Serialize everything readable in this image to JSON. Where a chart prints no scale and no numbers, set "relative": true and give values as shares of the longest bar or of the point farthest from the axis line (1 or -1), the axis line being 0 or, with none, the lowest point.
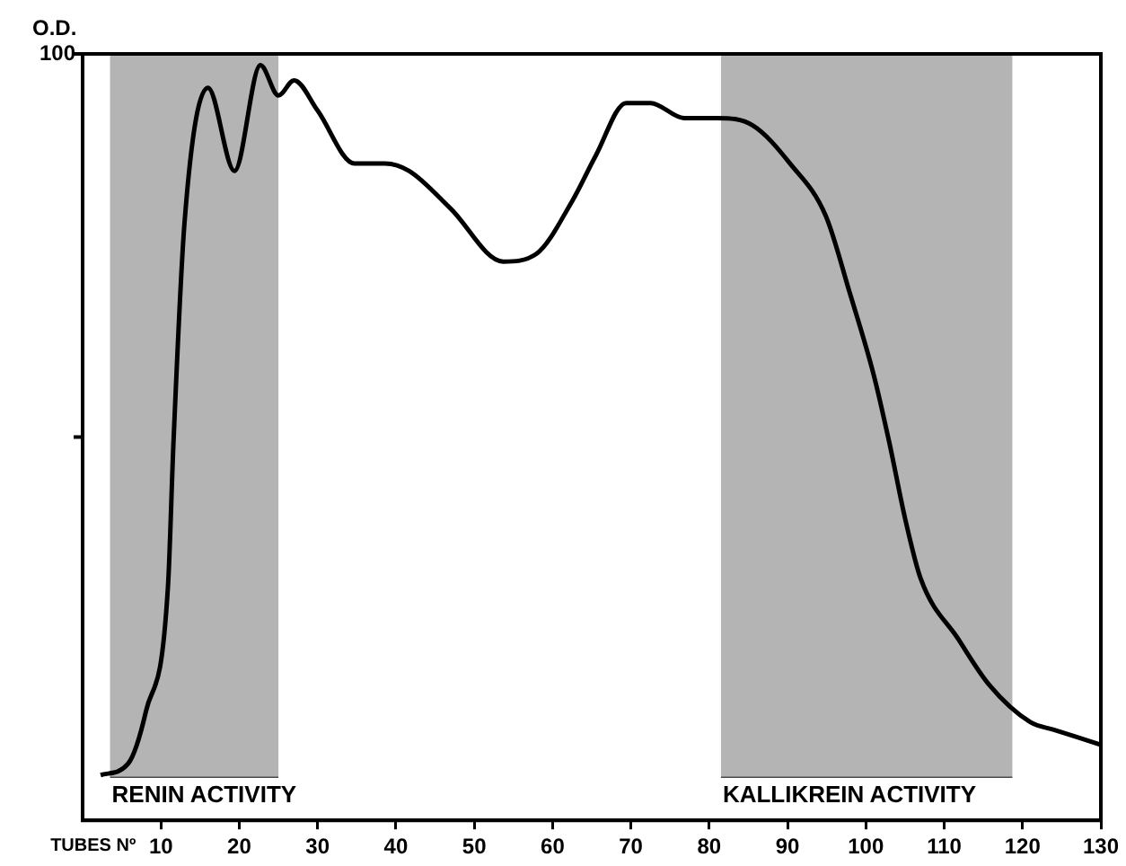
{
  "chart_data": {
    "type": "line",
    "relative": true,
    "xlabel": "TUBES Nº",
    "ylabel": "O.D.",
    "annotations": [
      "100"
    ],
    "xlim": [
      0,
      130
    ],
    "xticks": [
      10,
      20,
      30,
      40,
      50,
      60,
      70,
      80,
      90,
      100,
      110,
      120,
      130
    ],
    "x": [
      2.3,
      5.8,
      8.1,
      10.9,
      11.6,
      13,
      16,
      19.4,
      22.7,
      25,
      27,
      30,
      34.7,
      38.6,
      41.7,
      47,
      53.7,
      57.9,
      62.5,
      65.5,
      69.4,
      72.5,
      76.8,
      81,
      85.6,
      90.3,
      94.9,
      97.9,
      101,
      103,
      105,
      107,
      111.8,
      115.7,
      121,
      124,
      130
    ],
    "series": [
      {
        "color": "#000000",
        "values": [
          0.06,
          0.075,
          0.145,
          0.31,
          0.5,
          0.79,
          0.97,
          0.86,
          1,
          0.96,
          0.98,
          0.94,
          0.87,
          0.87,
          0.86,
          0.81,
          0.74,
          0.75,
          0.82,
          0.88,
          0.95,
          0.95,
          0.93,
          0.93,
          0.92,
          0.87,
          0.8,
          0.7,
          0.59,
          0.5,
          0.4,
          0.32,
          0.24,
          0.18,
          0.13,
          0.12,
          0.1
        ]
      }
    ],
    "bands": [
      {
        "axis": "x",
        "from": 3.5,
        "to": 25,
        "label": "RENIN ACTIVITY",
        "color": "#b4b4b4"
      },
      {
        "axis": "x",
        "from": 81.5,
        "to": 118.7,
        "label": "KALLIKREIN ACTIVITY",
        "color": "#b4b4b4"
      }
    ],
    "grid": false,
    "legend": false,
    "marker": "none",
    "line_style": "solid"
  }
}
